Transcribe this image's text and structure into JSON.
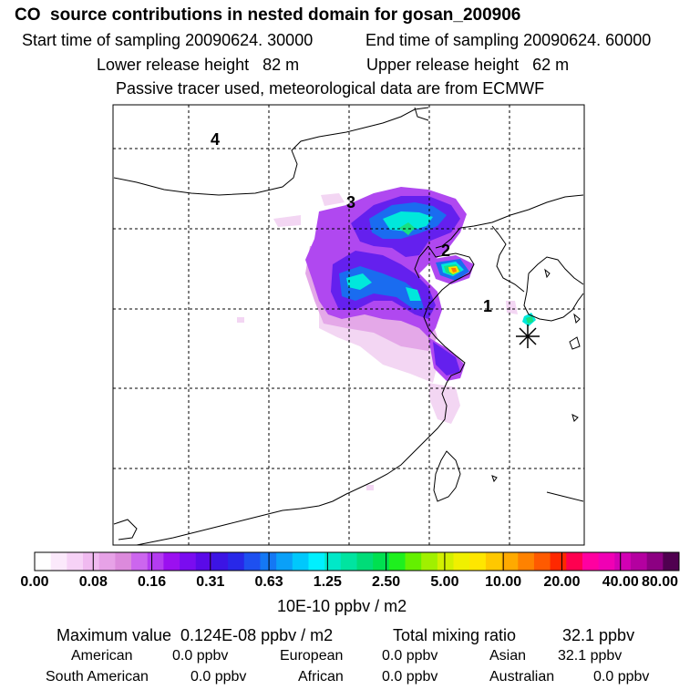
{
  "header": {
    "title": "CO  source contributions in nested domain for gosan_200906",
    "start_time": "Start time of sampling 20090624. 30000",
    "end_time": "End time of sampling 20090624. 60000",
    "lower_height": "Lower release height   82 m",
    "upper_height": "Upper release height   62 m",
    "tracer_note": "Passive tracer used, meteorological data are from ECMWF"
  },
  "map": {
    "region_labels": [
      "1",
      "2",
      "3",
      "4"
    ],
    "receptor_symbol": "asterisk"
  },
  "colorbar": {
    "tick_labels": [
      "0.00",
      "0.08",
      "0.16",
      "0.31",
      "0.63",
      "1.25",
      "2.50",
      "5.00",
      "10.00",
      "20.00",
      "40.00",
      "80.00"
    ],
    "units": "10E-10 ppbv / m2",
    "colors": [
      "#ffffff",
      "#fbe9fb",
      "#f6d2f6",
      "#f0baf0",
      "#e7a2e7",
      "#dc8adc",
      "#cc66ee",
      "#b43cf0",
      "#9b10f0",
      "#7a0cf0",
      "#5a0ae8",
      "#3c14e4",
      "#2828e8",
      "#1e50f0",
      "#1478f4",
      "#0aa0f8",
      "#00c8fc",
      "#00f0ff",
      "#00e8c8",
      "#00e4a0",
      "#00dc78",
      "#00e050",
      "#1ef01e",
      "#64f000",
      "#a0f000",
      "#d2f000",
      "#f0f000",
      "#ffe600",
      "#ffc800",
      "#ffaa00",
      "#ff8200",
      "#ff5a00",
      "#ff2800",
      "#ff0050",
      "#ff00a0",
      "#f000b4",
      "#d200b4",
      "#b400a0",
      "#8c0082",
      "#500050"
    ]
  },
  "summary": {
    "max_value": "Maximum value  0.124E-08 ppbv / m2",
    "total_label": "Total mixing ratio",
    "total_value": "32.1 ppbv",
    "regions": [
      {
        "name": "American",
        "value": "0.0 ppbv"
      },
      {
        "name": "European",
        "value": "0.0 ppbv"
      },
      {
        "name": "Asian",
        "value": "32.1 ppbv"
      },
      {
        "name": "South American",
        "value": "0.0 ppbv"
      },
      {
        "name": "African",
        "value": "0.0 ppbv"
      },
      {
        "name": "Australian",
        "value": "0.0 ppbv"
      }
    ]
  }
}
